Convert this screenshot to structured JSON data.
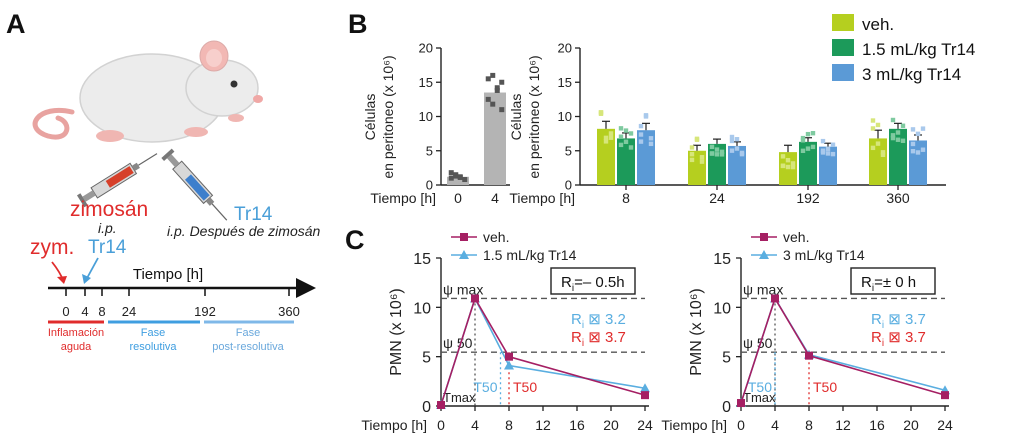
{
  "panels": {
    "a": "A",
    "b": "B",
    "c": "C"
  },
  "colors": {
    "veh_bar": "#b5cf1f",
    "tr14_15": "#1c9a5a",
    "tr14_3": "#5b9ad6",
    "veh_line": "#a51f63",
    "tr14_line": "#5aaee0",
    "red_text": "#e02c2c",
    "blue_text": "#4a9fd8",
    "grey_bar": "#b4b4b4",
    "dark_point": "#555555"
  },
  "panel_a": {
    "zymosan_label": "zimosán",
    "ip_label_1": "i.p.",
    "tr14_label_1": "Tr14",
    "zym_label": "zym.",
    "tr14_label_2": "Tr14",
    "ip_after_label": "i.p. Después de zimosán",
    "time_title": "Tiempo [h]",
    "ticks": [
      "0",
      "4",
      "8",
      "24",
      "192",
      "360"
    ],
    "phases": [
      {
        "line1": "Inflamación",
        "line2": "aguda"
      },
      {
        "line1": "Fase",
        "line2": "resolutiva"
      },
      {
        "line1": "Fase",
        "line2": "post-resolutiva"
      }
    ]
  },
  "panel_b": {
    "legend": [
      "veh.",
      "1.5 mL/kg Tr14",
      "3 mL/kg Tr14"
    ],
    "chart_data": [
      {
        "type": "bar",
        "ylabel_line1": "Células",
        "ylabel_line2": "en peritoneo (x 10⁶)",
        "xlabel": "Tiempo [h]",
        "categories": [
          "0",
          "4"
        ],
        "values": [
          1.2,
          13.5
        ],
        "yticks": [
          "0",
          "5",
          "10",
          "15",
          "20"
        ],
        "ylim": [
          0,
          20
        ]
      },
      {
        "type": "bar",
        "ylabel_line1": "Células",
        "ylabel_line2": "en peritoneo (x 10⁶)",
        "xlabel": "Tiempo [h]",
        "categories": [
          "8",
          "24",
          "192",
          "360"
        ],
        "series": [
          {
            "name": "veh.",
            "values": [
              8.2,
              5.0,
              4.8,
              6.8
            ],
            "errors": [
              1.1,
              0.8,
              1.0,
              1.2
            ]
          },
          {
            "name": "1.5 mL/kg Tr14",
            "values": [
              6.8,
              6.0,
              6.3,
              8.2
            ],
            "errors": [
              0.8,
              0.7,
              0.6,
              0.8
            ]
          },
          {
            "name": "3 mL/kg Tr14",
            "values": [
              8.0,
              5.7,
              5.6,
              6.5
            ],
            "errors": [
              1.0,
              0.6,
              0.5,
              0.8
            ]
          }
        ],
        "yticks": [
          "0",
          "5",
          "10",
          "15",
          "20"
        ],
        "ylim": [
          0,
          20
        ]
      }
    ]
  },
  "panel_c": {
    "chart_data": [
      {
        "type": "line",
        "ylabel": "PMN (x 10⁶)",
        "xlabel": "Tiempo [h]",
        "xticks": [
          "0",
          "4",
          "8",
          "12",
          "16",
          "20",
          "24"
        ],
        "yticks": [
          "0",
          "5",
          "10",
          "15"
        ],
        "xlim": [
          0,
          24
        ],
        "ylim": [
          0,
          15
        ],
        "series": [
          {
            "name": "veh.",
            "x": [
              0,
              4,
              8,
              24
            ],
            "y": [
              0.1,
              10.9,
              5.0,
              1.1
            ]
          },
          {
            "name": "1.5 mL/kg Tr14",
            "x": [
              0,
              4,
              8,
              24
            ],
            "y": [
              0.1,
              10.9,
              4.1,
              1.8
            ]
          }
        ],
        "psi_max_label": "ψ max",
        "psi_50_label": "ψ 50",
        "psi_max": 10.9,
        "psi_50": 5.45,
        "tmax_label": "Tmax",
        "t50_blue_label": "T50",
        "t50_red_label": "T50",
        "t50_blue": 7.0,
        "t50_red": 8.0,
        "box_R": "R",
        "box_sub": "i",
        "box_val": "=– 0.5h",
        "ri_blue": "R",
        "ri_blue_sub": "i",
        "ri_blue_val": " ⊠ 3.2",
        "ri_red": "R",
        "ri_red_sub": "i",
        "ri_red_val": " ⊠ 3.7"
      },
      {
        "type": "line",
        "ylabel": "PMN (x 10⁶)",
        "xlabel": "Tiempo [h]",
        "xticks": [
          "0",
          "4",
          "8",
          "12",
          "16",
          "20",
          "24"
        ],
        "yticks": [
          "0",
          "5",
          "10",
          "15"
        ],
        "xlim": [
          0,
          24
        ],
        "ylim": [
          0,
          15
        ],
        "series": [
          {
            "name": "veh.",
            "x": [
              0,
              4,
              8,
              24
            ],
            "y": [
              0.3,
              10.9,
              5.1,
              1.1
            ]
          },
          {
            "name": "3 mL/kg Tr14",
            "x": [
              0,
              4,
              8,
              24
            ],
            "y": [
              0.3,
              10.9,
              5.2,
              1.6
            ]
          }
        ],
        "psi_max_label": "ψ max",
        "psi_50_label": "ψ 50",
        "psi_max": 10.9,
        "psi_50": 5.45,
        "tmax_label": "Tmax",
        "t50_blue_label": "T50",
        "t50_red_label": "T50",
        "t50_blue": 4.0,
        "t50_red": 8.0,
        "box_R": "R",
        "box_sub": "i",
        "box_val": "=± 0 h",
        "ri_blue": "R",
        "ri_blue_sub": "i",
        "ri_blue_val": " ⊠ 3.7",
        "ri_red": "R",
        "ri_red_sub": "i",
        "ri_red_val": " ⊠ 3.7"
      }
    ]
  }
}
